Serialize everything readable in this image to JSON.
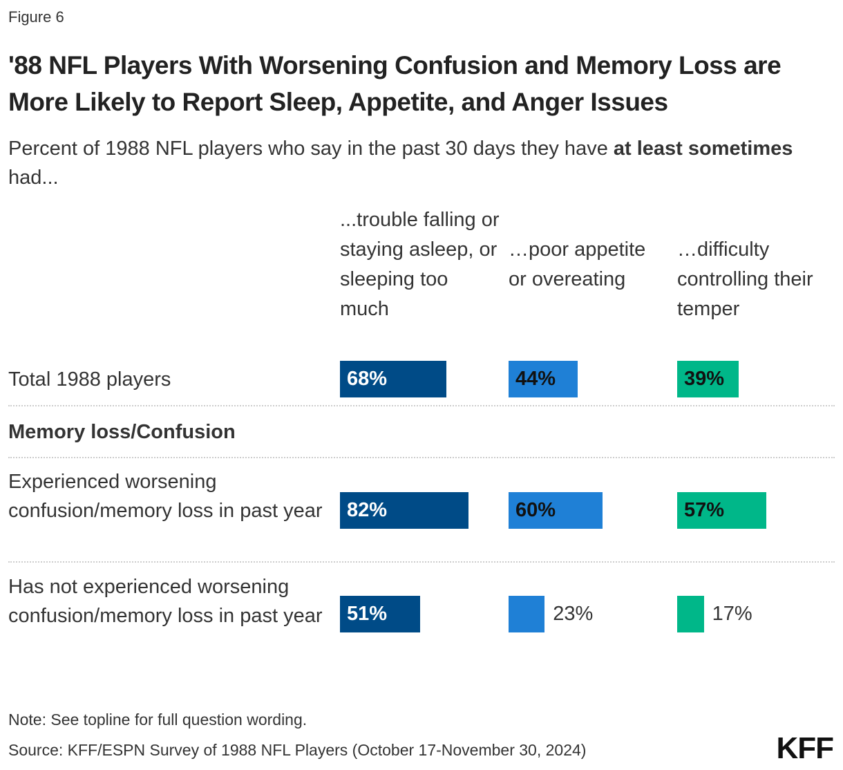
{
  "figure_label": "Figure 6",
  "title": "'88 NFL Players With Worsening Confusion and Memory Loss are More Likely to Report Sleep, Appetite, and Anger Issues",
  "subtitle_pre": "Percent of 1988 NFL players who say in the past 30 days they have ",
  "subtitle_bold": "at least sometimes",
  "subtitle_post": " had...",
  "note": "Note: See topline for full question wording.",
  "source": "Source: KFF/ESPN Survey of 1988 NFL Players (October 17-November 30, 2024)",
  "logo": "KFF",
  "chart_data": {
    "type": "bar",
    "orientation": "horizontal",
    "columns": [
      {
        "name": "...trouble falling or staying asleep, or sleeping too much",
        "color": "#004B87"
      },
      {
        "name": "…poor appetite or overeating",
        "color": "#1F80D6"
      },
      {
        "name": "…difficulty controlling their temper",
        "color": "#00B789"
      }
    ],
    "group_header": "Memory loss/Confusion",
    "rows": [
      {
        "label": "Total 1988 players",
        "values": [
          68,
          44,
          39
        ],
        "labels": [
          "68%",
          "44%",
          "39%"
        ]
      },
      {
        "label": "Experienced worsening confusion/memory loss in past year",
        "values": [
          82,
          60,
          57
        ],
        "labels": [
          "82%",
          "60%",
          "57%"
        ]
      },
      {
        "label": "Has not experienced worsening confusion/memory loss in past year",
        "values": [
          51,
          23,
          17
        ],
        "labels": [
          "51%",
          "23%",
          "17%"
        ]
      }
    ],
    "value_format": "percent"
  }
}
